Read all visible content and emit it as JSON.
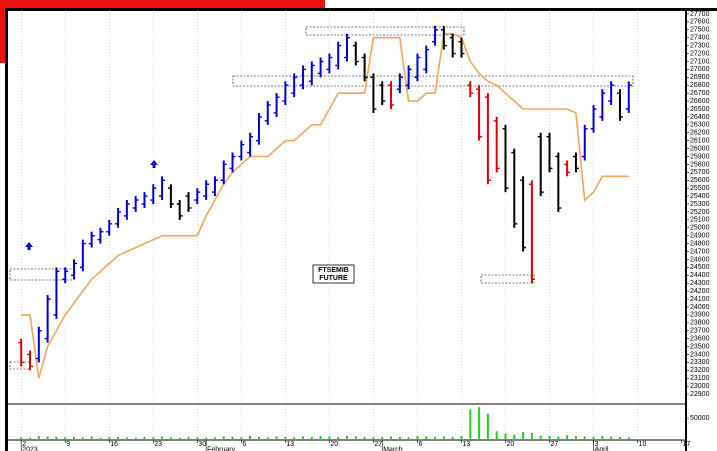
{
  "chart_data": {
    "type": "ohlc",
    "annotation": [
      "FTSEMIB",
      "FUTURE"
    ],
    "xlim": [
      -1.5,
      75.5
    ],
    "xticks": [
      {
        "value": 0,
        "label": "2"
      },
      {
        "value": 5,
        "label": "9"
      },
      {
        "value": 10,
        "label": "16"
      },
      {
        "value": 15,
        "label": "23"
      },
      {
        "value": 20,
        "label": "30"
      },
      {
        "value": 25,
        "label": "6"
      },
      {
        "value": 30,
        "label": "13"
      },
      {
        "value": 35,
        "label": "20"
      },
      {
        "value": 40,
        "label": "27"
      },
      {
        "value": 45,
        "label": "6"
      },
      {
        "value": 50,
        "label": "13"
      },
      {
        "value": 55,
        "label": "20"
      },
      {
        "value": 60,
        "label": "27"
      },
      {
        "value": 65,
        "label": "3"
      },
      {
        "value": 70,
        "label": "10"
      },
      {
        "value": 75,
        "label": "17"
      }
    ],
    "month_labels": [
      {
        "value": 0,
        "label": "2023"
      },
      {
        "value": 21,
        "label": "February"
      },
      {
        "value": 41,
        "label": "March"
      },
      {
        "value": 65,
        "label": "April"
      }
    ],
    "ylim": [
      22800,
      27750
    ],
    "yticks": [
      22900,
      23000,
      23100,
      23200,
      23300,
      23400,
      23500,
      23600,
      23700,
      23800,
      23900,
      24000,
      24100,
      24200,
      24300,
      24400,
      24500,
      24600,
      24700,
      24800,
      24900,
      25000,
      25100,
      25200,
      25300,
      25400,
      25500,
      25600,
      25700,
      25800,
      25900,
      26000,
      26100,
      26200,
      26300,
      26400,
      26500,
      26600,
      26700,
      26800,
      26900,
      27000,
      27100,
      27200,
      27300,
      27400,
      27500,
      27600,
      27700
    ],
    "vlim": [
      0,
      80000
    ],
    "vticks": [
      50000
    ],
    "colors": {
      "up": "#0000cc",
      "flat": "#000000",
      "down": "#dd0000",
      "trail": "#f5a55a",
      "volume": "#22cc22"
    },
    "bar_colors": [
      "down",
      "down",
      "up",
      "up",
      "up",
      "up",
      "up",
      "up",
      "up",
      "up",
      "up",
      "up",
      "up",
      "up",
      "up",
      "up",
      "up",
      "flat",
      "flat",
      "flat",
      "up",
      "up",
      "up",
      "up",
      "up",
      "up",
      "up",
      "up",
      "up",
      "up",
      "up",
      "up",
      "up",
      "up",
      "up",
      "up",
      "up",
      "up",
      "flat",
      "flat",
      "flat",
      "flat",
      "down",
      "up",
      "up",
      "up",
      "up",
      "up",
      "flat",
      "flat",
      "flat",
      "down",
      "down",
      "down",
      "down",
      "flat",
      "flat",
      "flat",
      "down",
      "flat",
      "flat",
      "flat",
      "down",
      "flat",
      "up",
      "up",
      "up",
      "up",
      "flat",
      "up"
    ],
    "open": [
      23550,
      23400,
      23350,
      23600,
      23900,
      24350,
      24400,
      24500,
      24800,
      24850,
      24950,
      25050,
      25150,
      25250,
      25300,
      25350,
      25400,
      25500,
      25300,
      25400,
      25350,
      25400,
      25450,
      25600,
      25750,
      25900,
      25950,
      26100,
      26350,
      26450,
      26600,
      26700,
      26800,
      26850,
      26950,
      27000,
      27050,
      27150,
      27300,
      27150,
      26900,
      26800,
      26800,
      26750,
      26800,
      26900,
      27000,
      27350,
      27500,
      27400,
      27350,
      26800,
      26750,
      26650,
      26350,
      26250,
      25950,
      25600,
      25550,
      26150,
      26150,
      25900,
      25800,
      25900,
      25900,
      26250,
      26400,
      26600,
      26700,
      26500
    ],
    "high": [
      23600,
      23450,
      23750,
      24150,
      24500,
      24500,
      24600,
      24850,
      24950,
      25000,
      25100,
      25250,
      25350,
      25400,
      25450,
      25550,
      25650,
      25550,
      25350,
      25450,
      25500,
      25600,
      25650,
      25850,
      25950,
      26100,
      26200,
      26450,
      26600,
      26700,
      26850,
      26950,
      27050,
      27100,
      27150,
      27200,
      27350,
      27450,
      27350,
      27200,
      26950,
      26850,
      26850,
      26950,
      27050,
      27200,
      27300,
      27550,
      27550,
      27450,
      27400,
      26850,
      26800,
      26700,
      26400,
      26300,
      26000,
      25650,
      25600,
      26200,
      26200,
      25950,
      25850,
      25950,
      26300,
      26550,
      26750,
      26850,
      26750,
      26850
    ],
    "low": [
      23250,
      23200,
      23300,
      23550,
      23850,
      24300,
      24350,
      24450,
      24750,
      24800,
      24900,
      25000,
      25100,
      25200,
      25250,
      25300,
      25350,
      25250,
      25100,
      25200,
      25300,
      25350,
      25400,
      25550,
      25700,
      25850,
      25900,
      26050,
      26300,
      26400,
      26550,
      26650,
      26750,
      26800,
      26900,
      26950,
      27000,
      27100,
      27050,
      26850,
      26450,
      26550,
      26500,
      26700,
      26750,
      26850,
      26950,
      27300,
      27250,
      27150,
      27150,
      26650,
      26100,
      25550,
      25700,
      25450,
      25000,
      24700,
      24300,
      25400,
      25700,
      25200,
      25650,
      25700,
      25850,
      26200,
      26350,
      26550,
      26350,
      26450
    ],
    "close": [
      23300,
      23250,
      23700,
      24100,
      24450,
      24450,
      24550,
      24800,
      24900,
      24950,
      25050,
      25200,
      25300,
      25350,
      25400,
      25500,
      25600,
      25300,
      25150,
      25250,
      25450,
      25550,
      25600,
      25800,
      25900,
      26050,
      26150,
      26400,
      26550,
      26650,
      26800,
      26900,
      27000,
      27050,
      27100,
      27150,
      27300,
      27400,
      27100,
      26900,
      26500,
      26600,
      26550,
      26900,
      27000,
      27150,
      27250,
      27500,
      27300,
      27200,
      27200,
      26700,
      26150,
      25600,
      25750,
      25500,
      25050,
      24750,
      24350,
      25450,
      25750,
      25250,
      25700,
      25750,
      26250,
      26500,
      26700,
      26800,
      26400,
      26800
    ],
    "trail": [
      23900,
      23900,
      23100,
      23500,
      23700,
      23900,
      24050,
      24200,
      24350,
      24450,
      24550,
      24650,
      24700,
      24750,
      24800,
      24850,
      24900,
      24900,
      24900,
      24900,
      24900,
      25150,
      25350,
      25550,
      25700,
      25800,
      25900,
      25900,
      25900,
      26000,
      26100,
      26100,
      26200,
      26300,
      26300,
      26500,
      26700,
      26700,
      26700,
      26700,
      27400,
      27400,
      27400,
      27400,
      26600,
      26600,
      26700,
      26700,
      27450,
      27450,
      27400,
      27100,
      26950,
      26850,
      26800,
      26700,
      26600,
      26500,
      26500,
      26500,
      26500,
      26500,
      26500,
      26450,
      25350,
      25450,
      25650,
      25650,
      25650,
      25650
    ],
    "volume": [
      6000,
      5000,
      9000,
      8000,
      7000,
      6000,
      7000,
      6000,
      8000,
      5000,
      6000,
      7000,
      6000,
      5000,
      7000,
      6000,
      8000,
      6000,
      5000,
      7000,
      6000,
      5000,
      6000,
      8000,
      7000,
      6000,
      9000,
      7000,
      6000,
      8000,
      7000,
      6000,
      8000,
      7000,
      9000,
      8000,
      7000,
      9000,
      8000,
      7000,
      6000,
      7000,
      8000,
      7000,
      6000,
      9000,
      8000,
      7000,
      8000,
      7000,
      9000,
      70000,
      75000,
      60000,
      20000,
      15000,
      12000,
      18000,
      16000,
      10000,
      9000,
      8000,
      11000,
      9000,
      8000,
      7000,
      9000,
      8000,
      7000,
      6000
    ]
  }
}
